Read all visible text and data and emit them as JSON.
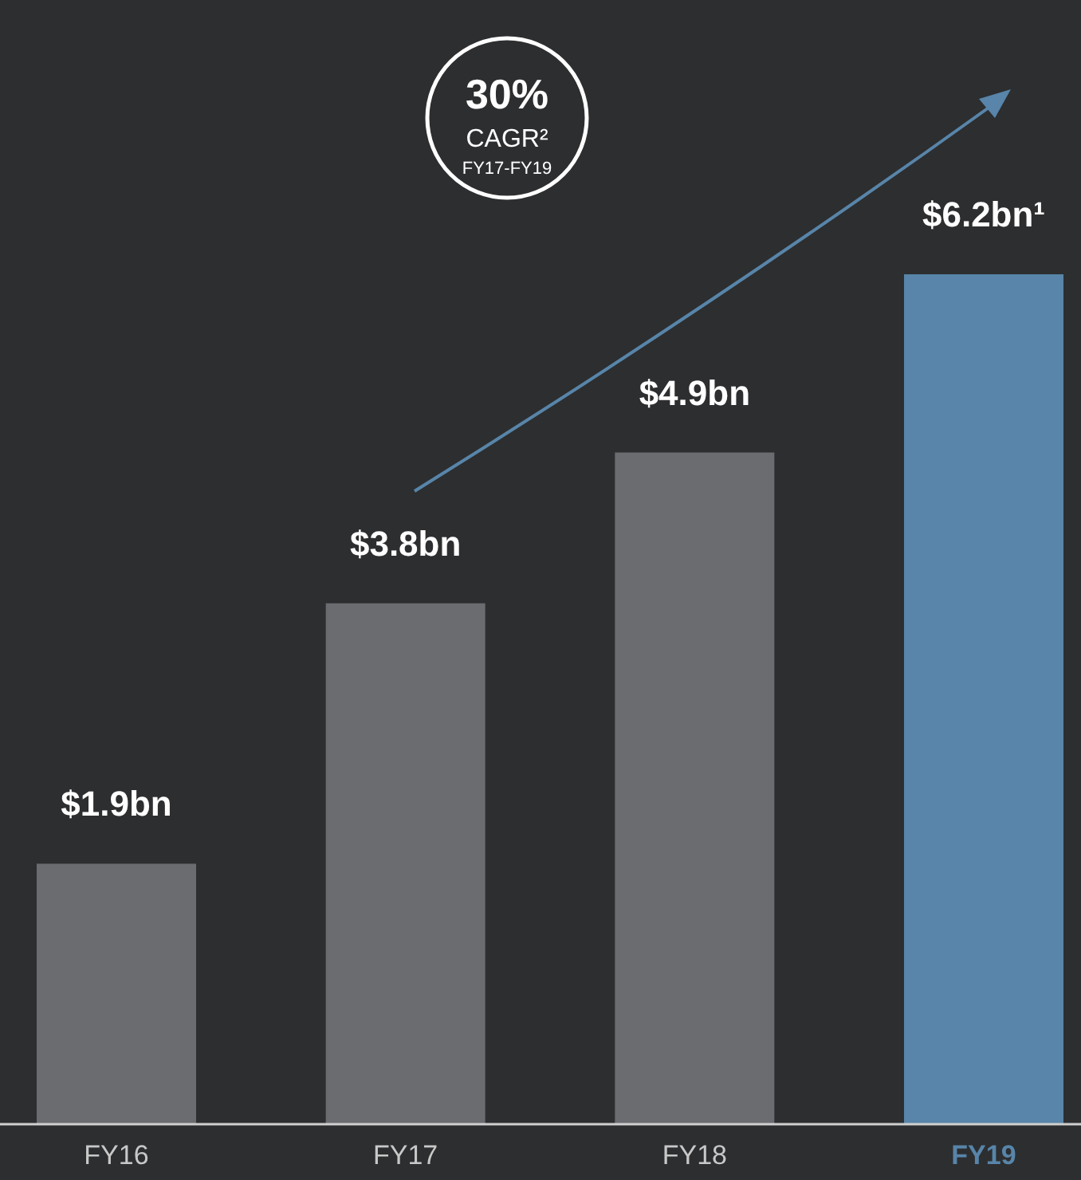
{
  "chart_data": {
    "type": "bar",
    "categories": [
      "FY16",
      "FY17",
      "FY18",
      "FY19"
    ],
    "values": [
      1.9,
      3.8,
      4.9,
      6.2
    ],
    "colors": [
      "#6b6c70",
      "#6b6c70",
      "#6b6c70",
      "#5885a9"
    ],
    "value_labels": [
      "$1.9bn",
      "$3.8bn",
      "$4.9bn",
      "$6.2bn¹"
    ],
    "annotations": [
      "30%",
      "CAGR²",
      "FY17-FY19"
    ]
  }
}
